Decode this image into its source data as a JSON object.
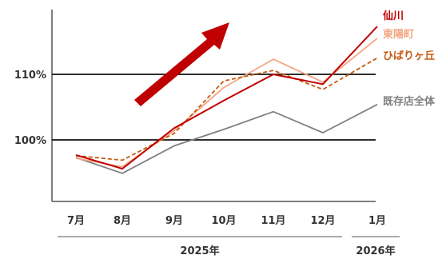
{
  "chart_data": {
    "type": "line",
    "x": [
      "7月",
      "8月",
      "9月",
      "10月",
      "11月",
      "12月",
      "1月"
    ],
    "group_labels": [
      {
        "label": "2025年",
        "from": 0,
        "to": 5
      },
      {
        "label": "2026年",
        "from": 6,
        "to": 6
      }
    ],
    "reference_lines": [
      {
        "value": 110,
        "label": "110%"
      },
      {
        "value": 100,
        "label": "100%"
      }
    ],
    "ylim": [
      91,
      120
    ],
    "series": [
      {
        "name": "仙川",
        "color": "#c00000",
        "dash": false,
        "values": [
          97.7,
          95.6,
          101.8,
          106.0,
          110.0,
          108.5,
          117.3
        ]
      },
      {
        "name": "東陽町",
        "color": "#f4a582",
        "dash": false,
        "values": [
          97.2,
          95.9,
          101.4,
          108.0,
          112.3,
          108.8,
          115.5
        ]
      },
      {
        "name": "ひばりヶ丘",
        "color": "#c55a11",
        "dash": true,
        "values": [
          97.6,
          96.9,
          101.0,
          109.0,
          110.6,
          107.7,
          112.5
        ]
      },
      {
        "name": "既存店全体",
        "color": "#808080",
        "dash": false,
        "values": [
          97.3,
          94.9,
          99.1,
          101.6,
          104.3,
          101.1,
          105.4
        ]
      }
    ],
    "annotation": {
      "type": "trend-arrow",
      "color": "#c00000",
      "meaning": "upward trend"
    }
  }
}
